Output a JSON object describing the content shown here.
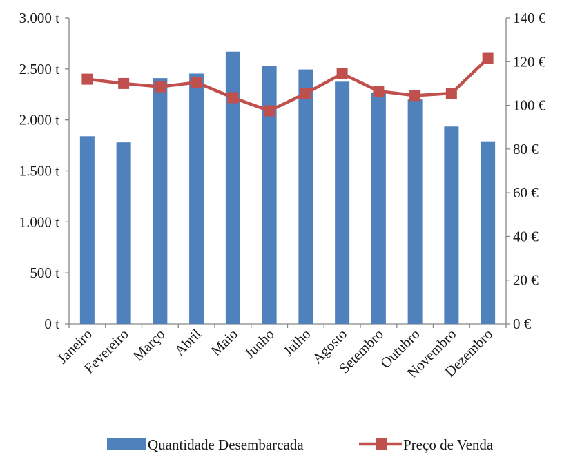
{
  "chart_data": {
    "type": "bar",
    "categories": [
      "Janeiro",
      "Fevereiro",
      "Março",
      "Abril",
      "Maio",
      "Junho",
      "Julho",
      "Agosto",
      "Setembro",
      "Outubro",
      "Novembro",
      "Dezembro"
    ],
    "series": [
      {
        "name": "Quantidade Desembarcada",
        "type": "bar",
        "axis": "left",
        "color": "#4f81bd",
        "values": [
          1840,
          1780,
          2410,
          2455,
          2670,
          2530,
          2495,
          2375,
          2270,
          2200,
          1935,
          1790
        ]
      },
      {
        "name": "Preço de Venda",
        "type": "line",
        "axis": "right",
        "color": "#c0504d",
        "marker": "square",
        "values": [
          112,
          110,
          108.5,
          110.5,
          103.5,
          97.5,
          105.5,
          114.5,
          106.5,
          104.5,
          105.5,
          121.5
        ]
      }
    ],
    "y_left": {
      "ylim": [
        0,
        3000
      ],
      "ticks": [
        0,
        500,
        1000,
        1500,
        2000,
        2500,
        3000
      ],
      "tick_labels": [
        "0 t",
        "500 t",
        "1.000 t",
        "1.500 t",
        "2.000 t",
        "2.500 t",
        "3.000 t"
      ]
    },
    "y_right": {
      "ylim": [
        0,
        140
      ],
      "ticks": [
        0,
        20,
        40,
        60,
        80,
        100,
        120,
        140
      ],
      "tick_labels": [
        "0 €",
        "20 €",
        "40 €",
        "60 €",
        "80 €",
        "100 €",
        "120 €",
        "140 €"
      ]
    },
    "grid": false,
    "legend": "bottom"
  }
}
